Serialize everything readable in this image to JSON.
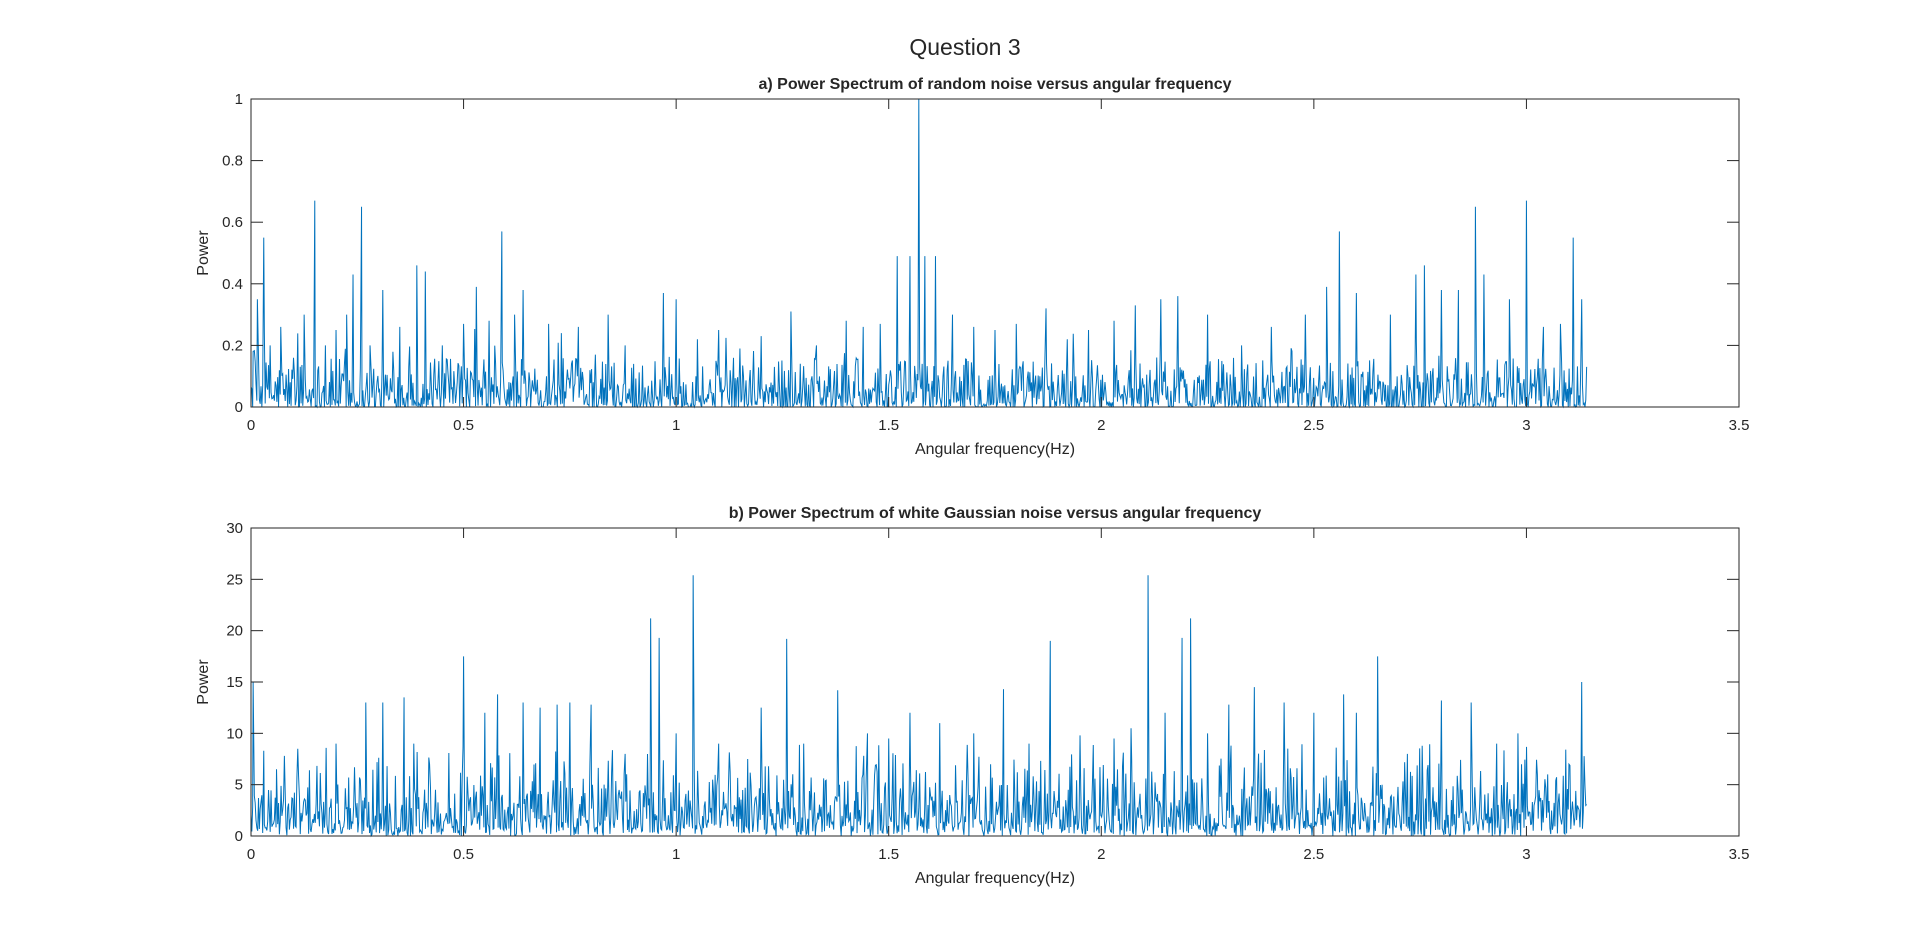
{
  "figure": {
    "suptitle": "Question 3"
  },
  "style": {
    "line_color": "#0072BD",
    "axis_color": "#262626",
    "background": "#ffffff"
  },
  "chart_data": [
    {
      "type": "line",
      "title": "a) Power Spectrum of random noise versus angular frequency",
      "xlabel": "Angular frequency(Hz)",
      "ylabel": "Power",
      "xlim": [
        0,
        3.5
      ],
      "ylim": [
        0,
        1
      ],
      "xticks": [
        "0",
        "0.5",
        "1",
        "1.5",
        "2",
        "2.5",
        "3",
        "3.5"
      ],
      "yticks": [
        "0",
        "0.2",
        "0.4",
        "0.6",
        "0.8",
        "1"
      ],
      "grid": false,
      "x_range": [
        0,
        3.1416
      ],
      "series": [
        {
          "values": [
            [
              0.005,
              0.18
            ],
            [
              0.015,
              0.35
            ],
            [
              0.03,
              0.55
            ],
            [
              0.045,
              0.2
            ],
            [
              0.07,
              0.26
            ],
            [
              0.1,
              0.16
            ],
            [
              0.125,
              0.3
            ],
            [
              0.15,
              0.67
            ],
            [
              0.175,
              0.2
            ],
            [
              0.2,
              0.25
            ],
            [
              0.225,
              0.3
            ],
            [
              0.24,
              0.43
            ],
            [
              0.26,
              0.65
            ],
            [
              0.28,
              0.2
            ],
            [
              0.31,
              0.38
            ],
            [
              0.35,
              0.26
            ],
            [
              0.39,
              0.46
            ],
            [
              0.41,
              0.44
            ],
            [
              0.45,
              0.2
            ],
            [
              0.5,
              0.27
            ],
            [
              0.53,
              0.39
            ],
            [
              0.56,
              0.28
            ],
            [
              0.59,
              0.57
            ],
            [
              0.62,
              0.3
            ],
            [
              0.64,
              0.38
            ],
            [
              0.7,
              0.27
            ],
            [
              0.73,
              0.24
            ],
            [
              0.77,
              0.26
            ],
            [
              0.81,
              0.17
            ],
            [
              0.84,
              0.3
            ],
            [
              0.88,
              0.2
            ],
            [
              0.9,
              0.14
            ],
            [
              0.97,
              0.37
            ],
            [
              1.0,
              0.35
            ],
            [
              1.05,
              0.22
            ],
            [
              1.1,
              0.25
            ],
            [
              1.15,
              0.19
            ],
            [
              1.2,
              0.23
            ],
            [
              1.27,
              0.31
            ],
            [
              1.33,
              0.2
            ],
            [
              1.4,
              0.28
            ],
            [
              1.44,
              0.26
            ],
            [
              1.48,
              0.27
            ],
            [
              1.52,
              0.49
            ],
            [
              1.55,
              0.49
            ],
            [
              1.5708,
              1.0
            ],
            [
              1.585,
              0.49
            ],
            [
              1.61,
              0.49
            ],
            [
              1.65,
              0.3
            ],
            [
              1.7,
              0.26
            ],
            [
              1.75,
              0.25
            ],
            [
              1.8,
              0.27
            ],
            [
              1.87,
              0.32
            ],
            [
              1.92,
              0.22
            ],
            [
              1.97,
              0.25
            ],
            [
              2.03,
              0.28
            ],
            [
              2.08,
              0.33
            ],
            [
              2.14,
              0.35
            ],
            [
              2.18,
              0.36
            ],
            [
              2.25,
              0.3
            ],
            [
              2.33,
              0.2
            ],
            [
              2.4,
              0.26
            ],
            [
              2.48,
              0.3
            ],
            [
              2.53,
              0.39
            ],
            [
              2.56,
              0.57
            ],
            [
              2.6,
              0.37
            ],
            [
              2.68,
              0.3
            ],
            [
              2.74,
              0.43
            ],
            [
              2.76,
              0.46
            ],
            [
              2.8,
              0.38
            ],
            [
              2.84,
              0.38
            ],
            [
              2.88,
              0.65
            ],
            [
              2.9,
              0.43
            ],
            [
              2.96,
              0.35
            ],
            [
              3.0,
              0.67
            ],
            [
              3.04,
              0.26
            ],
            [
              3.08,
              0.27
            ],
            [
              3.11,
              0.55
            ],
            [
              3.13,
              0.35
            ]
          ]
        }
      ]
    },
    {
      "type": "line",
      "title": "b) Power Spectrum of white Gaussian noise versus angular frequency",
      "xlabel": "Angular frequency(Hz)",
      "ylabel": "Power",
      "xlim": [
        0,
        3.5
      ],
      "ylim": [
        0,
        30
      ],
      "xticks": [
        "0",
        "0.5",
        "1",
        "1.5",
        "2",
        "2.5",
        "3",
        "3.5"
      ],
      "yticks": [
        "0",
        "5",
        "10",
        "15",
        "20",
        "25",
        "30"
      ],
      "grid": false,
      "x_range": [
        0,
        3.1416
      ],
      "series": [
        {
          "values": [
            [
              0.005,
              15.0
            ],
            [
              0.03,
              8.3
            ],
            [
              0.06,
              6.5
            ],
            [
              0.11,
              8.5
            ],
            [
              0.2,
              9.0
            ],
            [
              0.27,
              13.0
            ],
            [
              0.31,
              13.0
            ],
            [
              0.36,
              13.5
            ],
            [
              0.42,
              7.0
            ],
            [
              0.5,
              17.5
            ],
            [
              0.55,
              12.0
            ],
            [
              0.58,
              13.8
            ],
            [
              0.64,
              13.0
            ],
            [
              0.68,
              12.5
            ],
            [
              0.72,
              12.8
            ],
            [
              0.75,
              13.0
            ],
            [
              0.8,
              12.8
            ],
            [
              0.88,
              8.0
            ],
            [
              0.94,
              21.2
            ],
            [
              0.96,
              19.3
            ],
            [
              1.0,
              10.0
            ],
            [
              1.04,
              25.4
            ],
            [
              1.1,
              9.0
            ],
            [
              1.2,
              12.5
            ],
            [
              1.26,
              19.2
            ],
            [
              1.3,
              9.0
            ],
            [
              1.38,
              14.2
            ],
            [
              1.45,
              10.0
            ],
            [
              1.5,
              9.5
            ],
            [
              1.55,
              12.0
            ],
            [
              1.62,
              11.0
            ],
            [
              1.7,
              10.0
            ],
            [
              1.77,
              14.3
            ],
            [
              1.83,
              9.0
            ],
            [
              1.88,
              19.0
            ],
            [
              1.95,
              9.8
            ],
            [
              2.03,
              9.5
            ],
            [
              2.07,
              10.5
            ],
            [
              2.11,
              25.4
            ],
            [
              2.15,
              12.0
            ],
            [
              2.19,
              19.3
            ],
            [
              2.21,
              21.2
            ],
            [
              2.25,
              10.0
            ],
            [
              2.3,
              12.8
            ],
            [
              2.36,
              14.5
            ],
            [
              2.43,
              13.0
            ],
            [
              2.5,
              12.0
            ],
            [
              2.57,
              13.8
            ],
            [
              2.6,
              12.0
            ],
            [
              2.65,
              17.5
            ],
            [
              2.72,
              8.0
            ],
            [
              2.8,
              13.2
            ],
            [
              2.87,
              13.0
            ],
            [
              2.93,
              9.0
            ],
            [
              2.98,
              10.0
            ],
            [
              3.05,
              6.0
            ],
            [
              3.1,
              7.0
            ],
            [
              3.13,
              15.0
            ]
          ]
        }
      ]
    }
  ]
}
